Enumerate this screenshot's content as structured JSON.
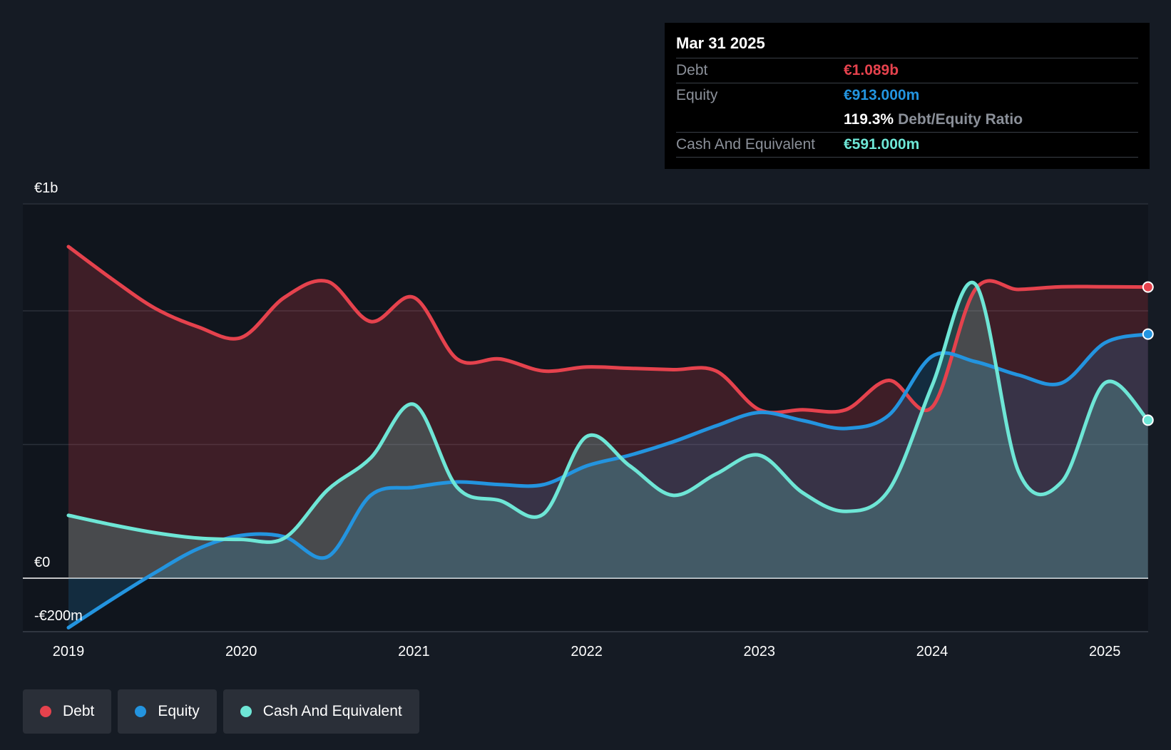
{
  "tooltip": {
    "date": "Mar 31 2025",
    "debt_label": "Debt",
    "debt_value": "€1.089b",
    "equity_label": "Equity",
    "equity_value": "€913.000m",
    "ratio_value": "119.3%",
    "ratio_label": "Debt/Equity Ratio",
    "cash_label": "Cash And Equivalent",
    "cash_value": "€591.000m"
  },
  "legend": {
    "debt": "Debt",
    "equity": "Equity",
    "cash": "Cash And Equivalent"
  },
  "colors": {
    "debt": "#e5424d",
    "equity": "#2394df",
    "cash": "#6ee6d6",
    "background": "#151b24"
  },
  "chart_data": {
    "type": "area",
    "title": "",
    "xlabel": "",
    "ylabel": "",
    "ylim": [
      -200,
      1400
    ],
    "x_ticks": [
      2019,
      2020,
      2021,
      2022,
      2023,
      2024,
      2025
    ],
    "x_tick_labels": [
      "2019",
      "2020",
      "2021",
      "2022",
      "2023",
      "2024",
      "2025"
    ],
    "y_tick_labels": [
      {
        "value": 1400,
        "label": "€1b"
      },
      {
        "value": 0,
        "label": "€0"
      },
      {
        "value": -200,
        "label": "-€200m"
      }
    ],
    "x": [
      2019.0,
      2019.25,
      2019.5,
      2019.75,
      2020.0,
      2020.25,
      2020.5,
      2020.75,
      2021.0,
      2021.25,
      2021.5,
      2021.75,
      2022.0,
      2022.25,
      2022.5,
      2022.75,
      2023.0,
      2023.25,
      2023.5,
      2023.75,
      2024.0,
      2024.25,
      2024.5,
      2024.75,
      2025.0,
      2025.25
    ],
    "series": [
      {
        "name": "Debt",
        "values": [
          1240,
          1120,
          1010,
          940,
          900,
          1050,
          1110,
          960,
          1050,
          820,
          820,
          775,
          790,
          785,
          780,
          775,
          630,
          630,
          630,
          740,
          640,
          1080,
          1080,
          1090,
          1090,
          1089
        ]
      },
      {
        "name": "Equity",
        "values": [
          -185,
          -80,
          20,
          110,
          160,
          155,
          80,
          310,
          340,
          360,
          350,
          350,
          420,
          460,
          510,
          570,
          620,
          590,
          560,
          610,
          830,
          810,
          760,
          730,
          880,
          913
        ]
      },
      {
        "name": "Cash And Equivalent",
        "values": [
          235,
          200,
          170,
          150,
          145,
          150,
          330,
          450,
          650,
          340,
          290,
          240,
          530,
          420,
          310,
          390,
          460,
          320,
          250,
          330,
          720,
          1100,
          400,
          360,
          730,
          591
        ]
      }
    ]
  }
}
